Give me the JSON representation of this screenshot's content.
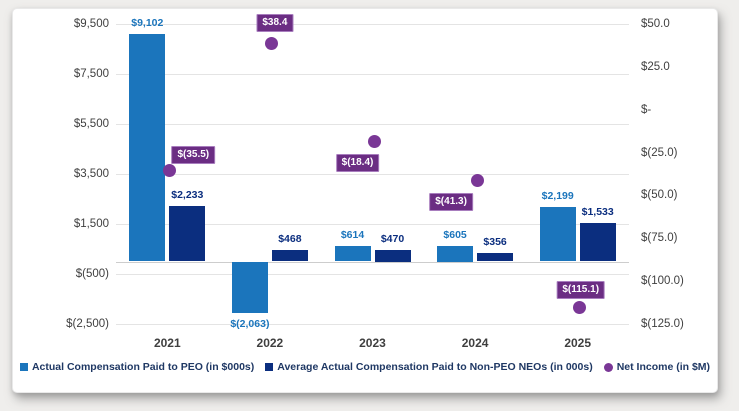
{
  "colors": {
    "peo_bar": "#1b75bc",
    "neo_bar": "#0b2e7f",
    "net_income_dot": "#7a3796",
    "net_income_label_bg": "#6b2d83",
    "net_income_label_border": "#a87dbe",
    "axis_text": "#3f3f3f",
    "grid": "#e4e4e4",
    "legend_text": "#1f3864",
    "card_bg": "#ffffff"
  },
  "chart_data": {
    "type": "bar",
    "title": "",
    "categories": [
      "2021",
      "2022",
      "2023",
      "2024",
      "2025"
    ],
    "series": [
      {
        "name": "Actual Compensation Paid to PEO (in $000s)",
        "type": "bar",
        "axis": "left",
        "color": "#1b75bc",
        "values": [
          9102,
          -2063,
          614,
          605,
          2199
        ],
        "labels": [
          "$9,102",
          "$(2,063)",
          "$614",
          "$605",
          "$2,199"
        ]
      },
      {
        "name": "Average Actual Compensation Paid to Non-PEO NEOs (in 000s)",
        "type": "bar",
        "axis": "left",
        "color": "#0b2e7f",
        "values": [
          2233,
          468,
          470,
          356,
          1533
        ],
        "labels": [
          "$2,233",
          "$468",
          "$470",
          "$356",
          "$1,533"
        ]
      },
      {
        "name": "Net Income (in $M)",
        "type": "scatter",
        "axis": "right",
        "color": "#7a3796",
        "values": [
          -35.5,
          38.4,
          -18.4,
          -41.3,
          -115.1
        ],
        "labels": [
          "$(35.5)",
          "$38.4",
          "$(18.4)",
          "$(41.3)",
          "$(115.1)"
        ],
        "label_offsets": [
          [
            24,
            -16
          ],
          [
            3,
            -21
          ],
          [
            -17,
            22
          ],
          [
            -26,
            21
          ],
          [
            1,
            -17
          ]
        ]
      }
    ],
    "left_axis": {
      "range": [
        9500,
        -2500
      ],
      "ticks": [
        9500,
        7500,
        5500,
        3500,
        1500,
        -500,
        -2500
      ],
      "tick_labels": [
        "$9,500",
        "$7,500",
        "$5,500",
        "$3,500",
        "$1,500",
        "$(500)",
        "$(2,500)"
      ]
    },
    "right_axis": {
      "range": [
        50,
        -125
      ],
      "ticks": [
        50,
        25,
        0,
        -25,
        -50,
        -75,
        -100,
        -125
      ],
      "tick_labels": [
        "$50.0",
        "$25.0",
        "$-",
        "$(25.0)",
        "$(50.0)",
        "$(75.0)",
        "$(100.0)",
        "$(125.0)"
      ]
    },
    "grid": true,
    "legend_position": "bottom"
  }
}
